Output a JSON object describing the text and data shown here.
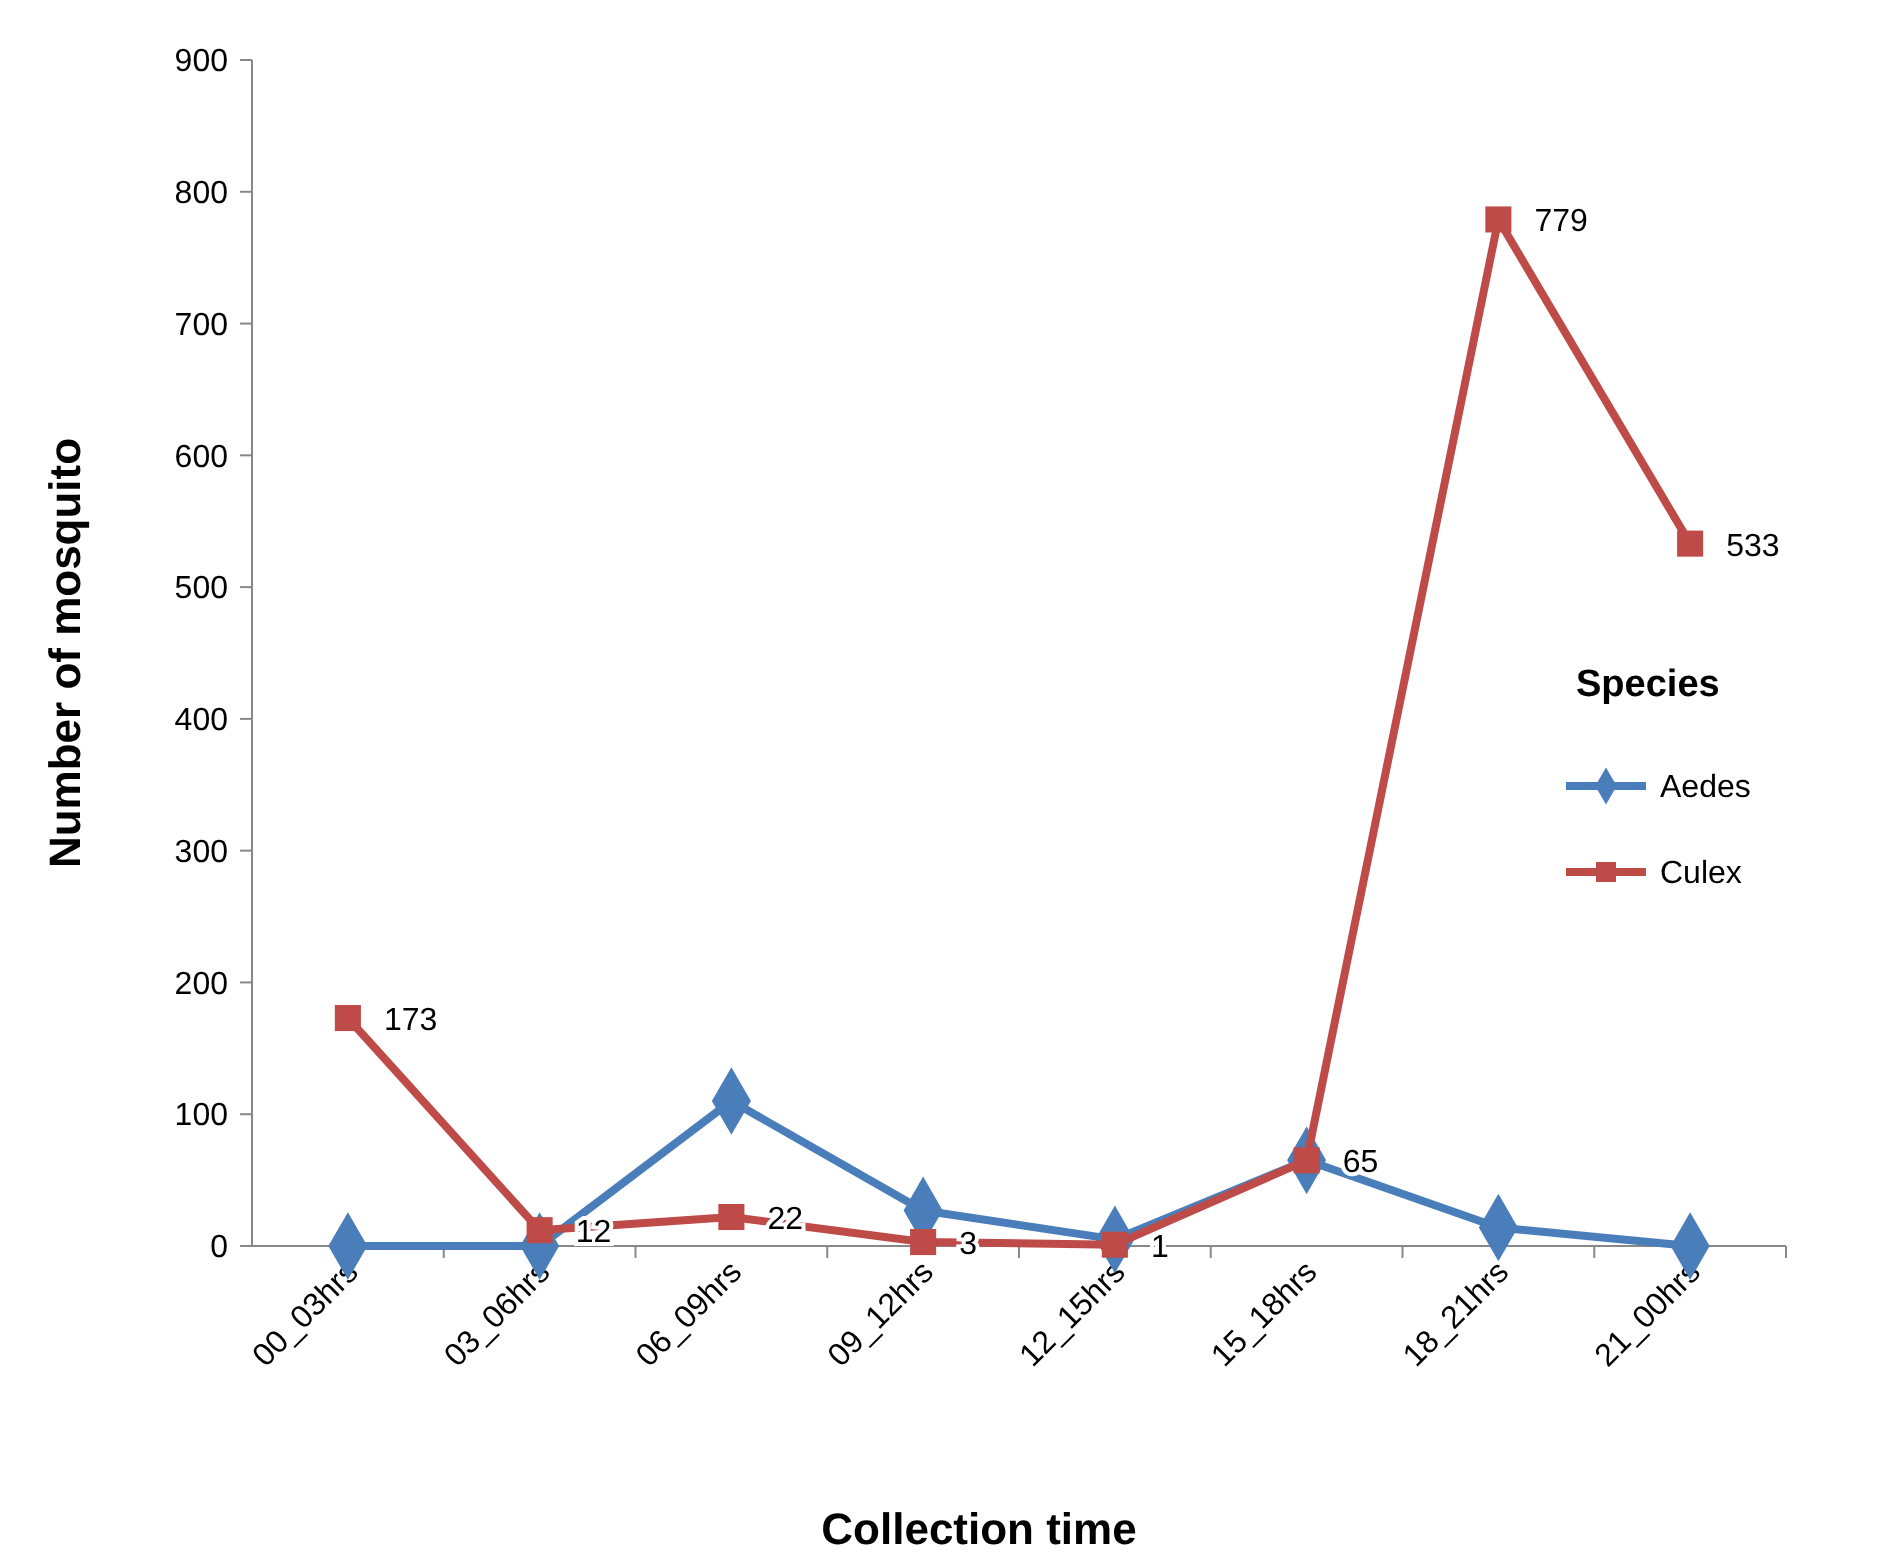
{
  "chart_data": {
    "type": "line",
    "xlabel": "Collection time",
    "ylabel": "Number of mosquito",
    "legend_title": "Species",
    "legend": "right",
    "grid": false,
    "categories": [
      "00_03hrs",
      "03_06hrs",
      "06_09hrs",
      "09_12hrs",
      "12_15hrs",
      "15_18hrs",
      "18_21hrs",
      "21_00hrs"
    ],
    "ylim": [
      0,
      900
    ],
    "yticks": [
      0,
      100,
      200,
      300,
      400,
      500,
      600,
      700,
      800,
      900
    ],
    "series": [
      {
        "name": "Aedes",
        "color": "#4a7ebb",
        "marker": "diamond",
        "values": [
          0,
          0,
          110,
          27,
          5,
          65,
          14,
          0
        ]
      },
      {
        "name": "Culex",
        "color": "#be4b48",
        "marker": "square",
        "values": [
          173,
          12,
          22,
          3,
          1,
          65,
          779,
          533
        ],
        "value_labels": [
          "173",
          "12",
          "22",
          "3",
          "1",
          "65",
          "779",
          "533"
        ]
      }
    ]
  }
}
